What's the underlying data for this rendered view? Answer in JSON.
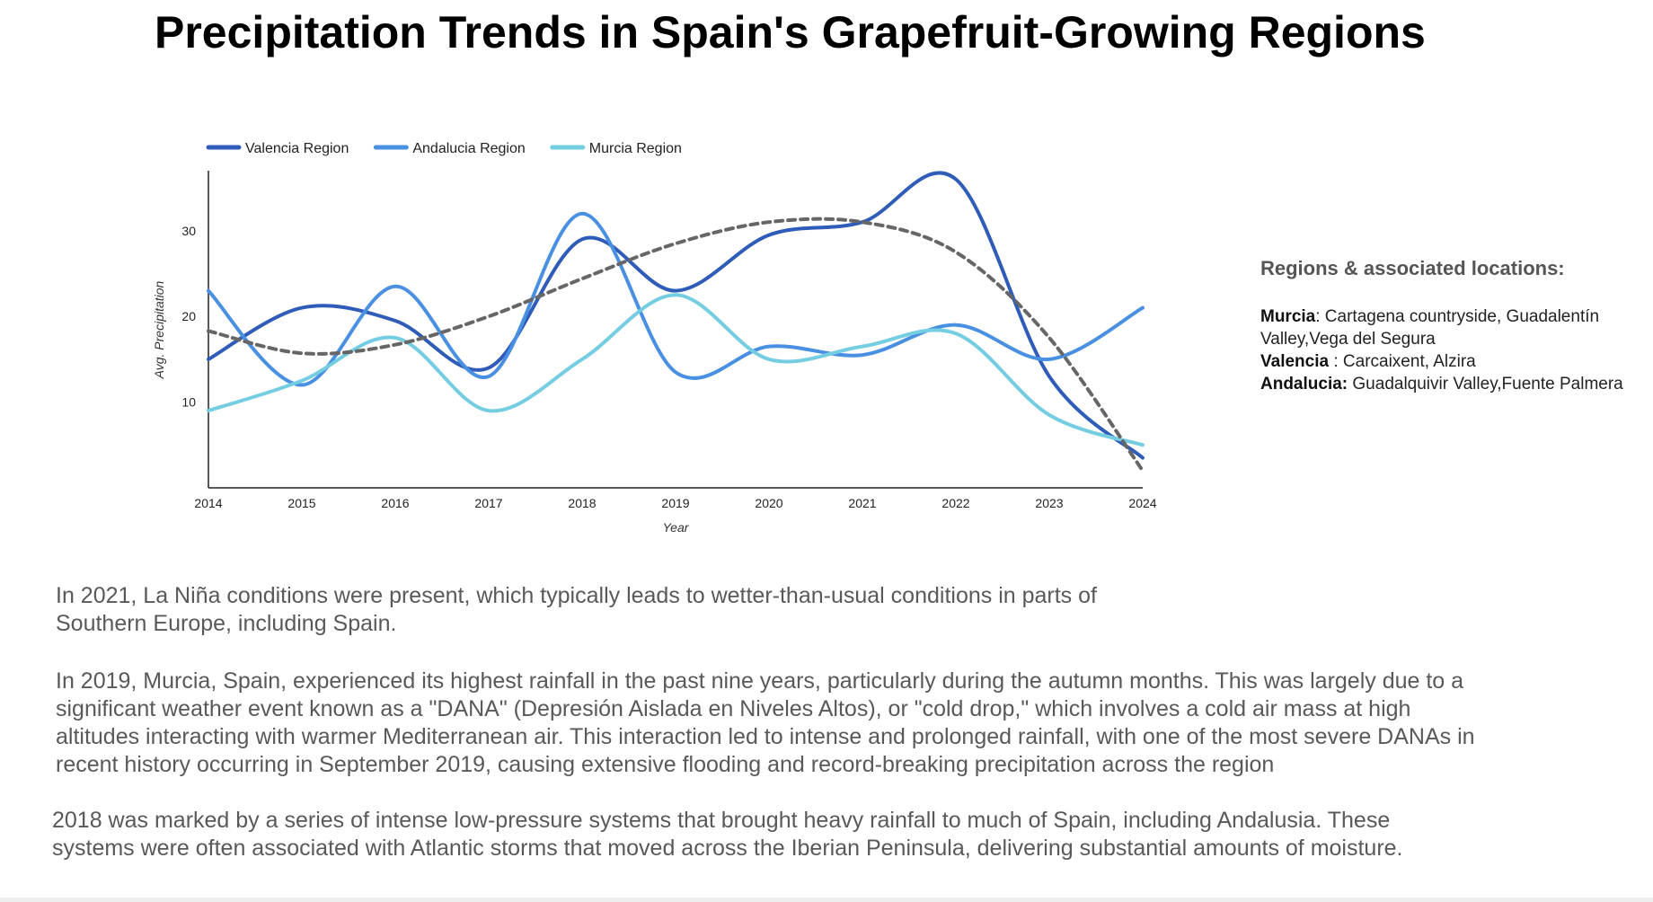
{
  "page": {
    "title": "Precipitation Trends in Spain's Grapefruit-Growing Regions"
  },
  "chart_data": {
    "type": "line",
    "title": "",
    "xlabel": "Year",
    "ylabel": "Avg. Precipitation",
    "x": [
      2014,
      2015,
      2016,
      2017,
      2018,
      2019,
      2020,
      2021,
      2022,
      2023,
      2024
    ],
    "xlim": [
      2014,
      2024
    ],
    "ylim": [
      0,
      37
    ],
    "yticks": [
      10,
      20,
      30
    ],
    "grid": false,
    "legend_position": "top-left",
    "series": [
      {
        "name": "Valencia Region",
        "color": "#2f5cb8",
        "values": [
          15,
          21,
          19.5,
          14,
          29,
          23,
          29.5,
          31,
          36,
          13,
          3.5
        ]
      },
      {
        "name": "Andalucia Region",
        "color": "#4a90e2",
        "values": [
          23,
          12,
          23.5,
          13,
          32,
          13.5,
          16.5,
          15.5,
          19,
          15,
          21
        ]
      },
      {
        "name": "Murcia Region",
        "color": "#74cde0",
        "values": [
          9,
          12.5,
          17.5,
          9,
          15,
          22.5,
          15,
          16.5,
          18,
          8.5,
          5
        ]
      }
    ],
    "trendline": {
      "color": "#666666",
      "dashed": true,
      "values": [
        18.3,
        15.7,
        16.7,
        20,
        24.4,
        28.5,
        31,
        31,
        27.5,
        17.5,
        2
      ]
    }
  },
  "sidebar": {
    "heading": "Regions & associated locations:",
    "entries": [
      {
        "region": "Murcia",
        "separator": ":",
        "text": " Cartagena countryside, Guadalentín Valley,Vega del Segura"
      },
      {
        "region": "Valencia",
        "separator": " :",
        "text": " Carcaixent,  Alzira"
      },
      {
        "region": "Andalucia:",
        "separator": "",
        "text": " Guadalquivir Valley,Fuente Palmera"
      }
    ]
  },
  "notes": {
    "note_2021": " In 2021, La Niña conditions were present, which typically leads to wetter-than-usual conditions in parts of Southern Europe, including Spain.",
    "note_2019": "In 2019, Murcia, Spain, experienced its highest rainfall in the past nine years, particularly during the autumn months. This was largely due to a significant weather event known as a \"DANA\" (Depresión Aislada en Niveles Altos), or \"cold drop,\" which involves a cold air mass at high altitudes interacting with warmer Mediterranean air. This interaction led to intense and prolonged rainfall, with one of the most severe DANAs in recent history occurring in September 2019, causing extensive flooding and record-breaking precipitation across the region",
    "note_2018": "2018 was marked by a series of intense low-pressure systems that brought heavy rainfall to much of Spain, including Andalusia. These systems were often associated with Atlantic storms that moved across the Iberian Peninsula, delivering substantial amounts of moisture."
  }
}
